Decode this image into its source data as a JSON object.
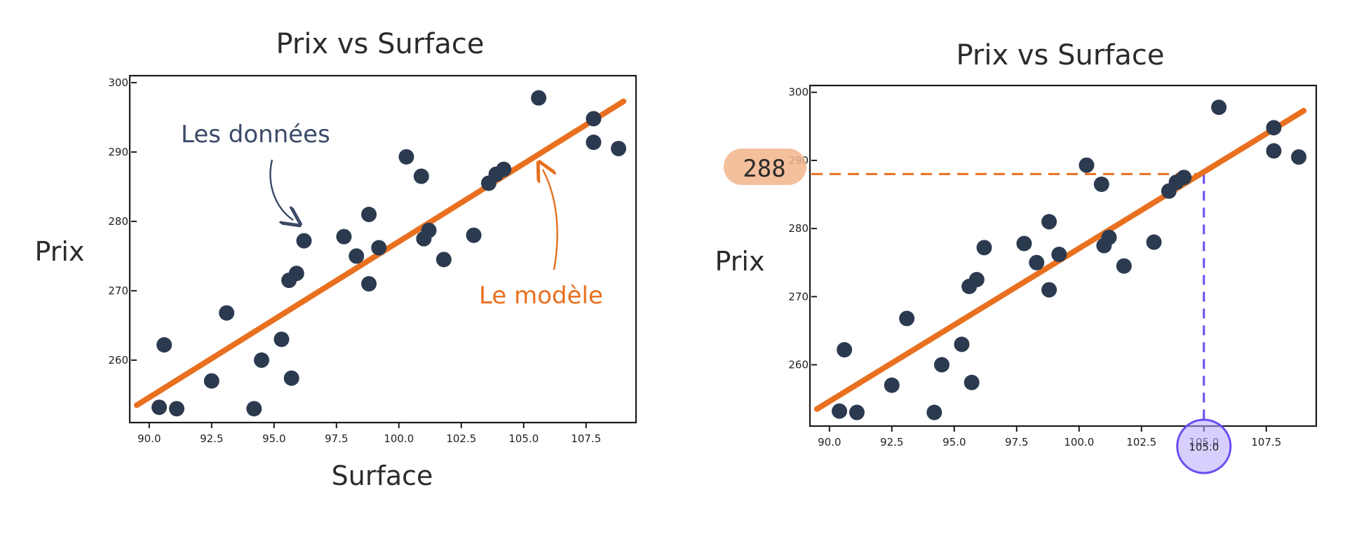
{
  "colors": {
    "points": "#2c3a50",
    "model_line": "#e8701f",
    "annotation_data": "#3b4a68",
    "annotation_model": "#e8701f",
    "highlight_y": "#f2b48c",
    "highlight_x": "#7b61ff",
    "guide_y": "#e8701f",
    "guide_x": "#6a4cf0"
  },
  "chart_data": [
    {
      "type": "scatter",
      "title": "Prix vs Surface",
      "xlabel": "Surface",
      "ylabel": "Prix",
      "xlim": [
        89.5,
        109.5
      ],
      "ylim": [
        251,
        301
      ],
      "xticks": [
        "90.0",
        "92.5",
        "95.0",
        "97.5",
        "100.0",
        "102.5",
        "105.0",
        "107.5"
      ],
      "yticks": [
        "300",
        "290",
        "280",
        "270",
        "260"
      ],
      "points": [
        {
          "x": 90.4,
          "y": 253.2
        },
        {
          "x": 90.6,
          "y": 262.2
        },
        {
          "x": 91.1,
          "y": 253.0
        },
        {
          "x": 92.5,
          "y": 257.0
        },
        {
          "x": 93.1,
          "y": 266.8
        },
        {
          "x": 94.2,
          "y": 253.0
        },
        {
          "x": 94.5,
          "y": 260.0
        },
        {
          "x": 95.3,
          "y": 263.0
        },
        {
          "x": 95.6,
          "y": 271.5
        },
        {
          "x": 95.7,
          "y": 257.4
        },
        {
          "x": 95.9,
          "y": 272.5
        },
        {
          "x": 96.2,
          "y": 277.2
        },
        {
          "x": 97.8,
          "y": 277.8
        },
        {
          "x": 98.3,
          "y": 275.0
        },
        {
          "x": 98.8,
          "y": 281.0
        },
        {
          "x": 98.8,
          "y": 271.0
        },
        {
          "x": 99.2,
          "y": 276.2
        },
        {
          "x": 100.3,
          "y": 289.3
        },
        {
          "x": 100.9,
          "y": 286.5
        },
        {
          "x": 101.0,
          "y": 277.5
        },
        {
          "x": 101.2,
          "y": 278.7
        },
        {
          "x": 101.8,
          "y": 274.5
        },
        {
          "x": 103.0,
          "y": 278.0
        },
        {
          "x": 103.6,
          "y": 285.5
        },
        {
          "x": 103.9,
          "y": 286.8
        },
        {
          "x": 104.2,
          "y": 287.5
        },
        {
          "x": 105.6,
          "y": 297.8
        },
        {
          "x": 107.8,
          "y": 294.8
        },
        {
          "x": 107.8,
          "y": 291.4
        },
        {
          "x": 108.8,
          "y": 290.5
        }
      ],
      "model_line": {
        "x": [
          89.5,
          109.0
        ],
        "y": [
          253.5,
          297.3
        ]
      },
      "annotations": [
        {
          "id": "data",
          "text": "Les données"
        },
        {
          "id": "model",
          "text": "Le modèle"
        }
      ]
    },
    {
      "type": "scatter",
      "title": "Prix vs Surface",
      "xlabel": "",
      "ylabel": "Prix",
      "xlim": [
        89.5,
        109.5
      ],
      "ylim": [
        251,
        301
      ],
      "xticks": [
        "90.0",
        "92.5",
        "95.0",
        "97.5",
        "100.0",
        "102.5",
        "105.0",
        "107.5"
      ],
      "yticks": [
        "300",
        "290",
        "280",
        "270",
        "260"
      ],
      "points": "same as first chart",
      "model_line": {
        "x": [
          89.5,
          109.0
        ],
        "y": [
          253.5,
          297.3
        ]
      },
      "highlight": {
        "x": 105.0,
        "x_label": "105.0",
        "y": 288,
        "y_label": "288"
      }
    }
  ]
}
